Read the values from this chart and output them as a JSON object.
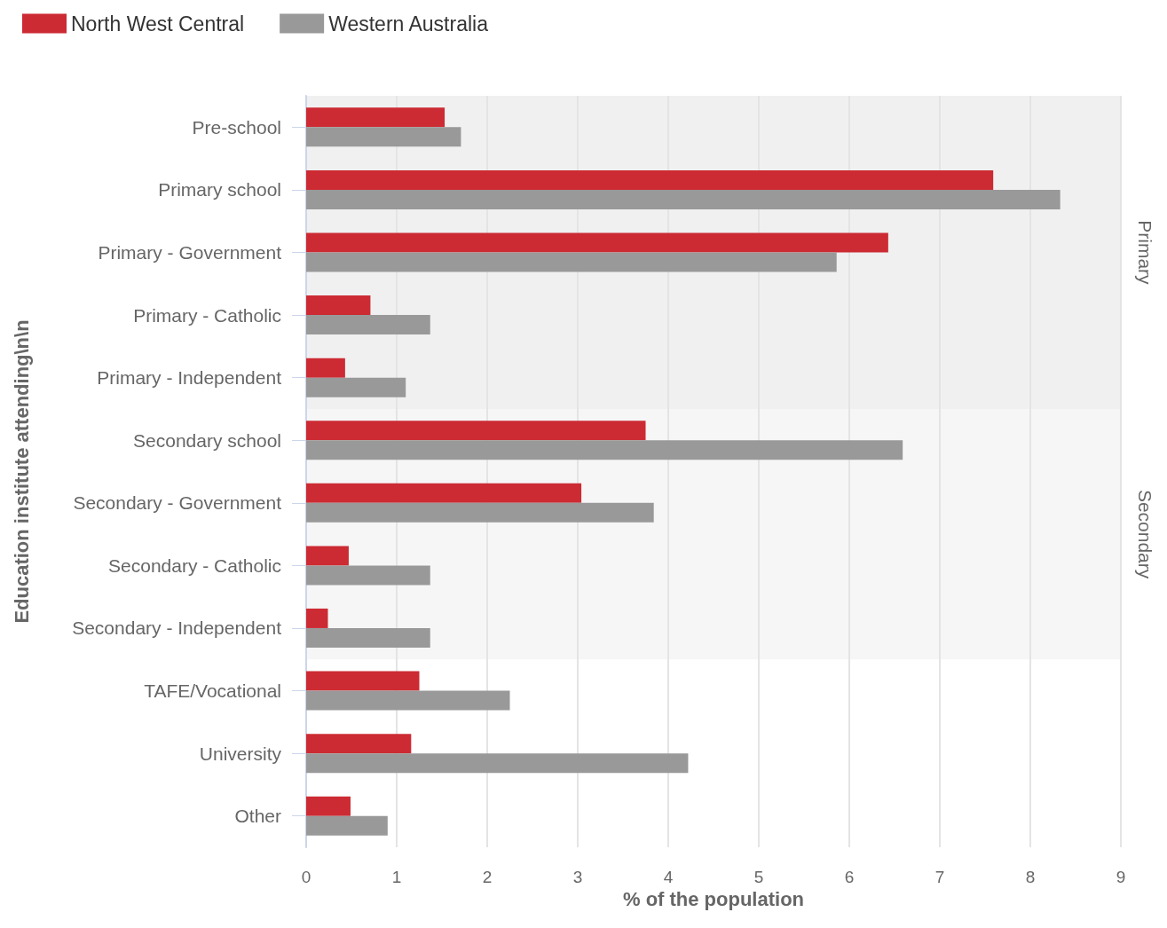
{
  "chart_data": {
    "type": "bar",
    "orientation": "horizontal",
    "xlabel": "% of the population",
    "ylabel": "Education institute attending\\n\\n",
    "categories": [
      "Pre-school",
      "Primary school",
      "Primary - Government",
      "Primary - Catholic",
      "Primary - Independent",
      "Secondary school",
      "Secondary - Government",
      "Secondary - Catholic",
      "Secondary - Independent",
      "TAFE/Vocational",
      "University",
      "Other"
    ],
    "series": [
      {
        "name": "North West Central",
        "color": "#cc2b33",
        "values": [
          1.53,
          7.59,
          6.43,
          0.71,
          0.43,
          3.75,
          3.04,
          0.47,
          0.24,
          1.25,
          1.16,
          0.49
        ]
      },
      {
        "name": "Western Australia",
        "color": "#999999",
        "values": [
          1.71,
          8.33,
          5.86,
          1.37,
          1.1,
          6.59,
          3.84,
          1.37,
          1.37,
          2.25,
          4.22,
          0.9
        ]
      }
    ],
    "xlim": [
      0,
      9
    ],
    "xticks": [
      0,
      1,
      2,
      3,
      4,
      5,
      6,
      7,
      8,
      9
    ],
    "bands": [
      {
        "axis": "y",
        "from": "Pre-school",
        "to": "Primary - Independent",
        "label": "Primary",
        "color": "#f0f0f0"
      },
      {
        "axis": "y",
        "from": "Secondary school",
        "to": "Secondary - Independent",
        "label": "Secondary",
        "color": "#f6f6f6"
      }
    ],
    "grid": "x",
    "legend": "top left"
  }
}
